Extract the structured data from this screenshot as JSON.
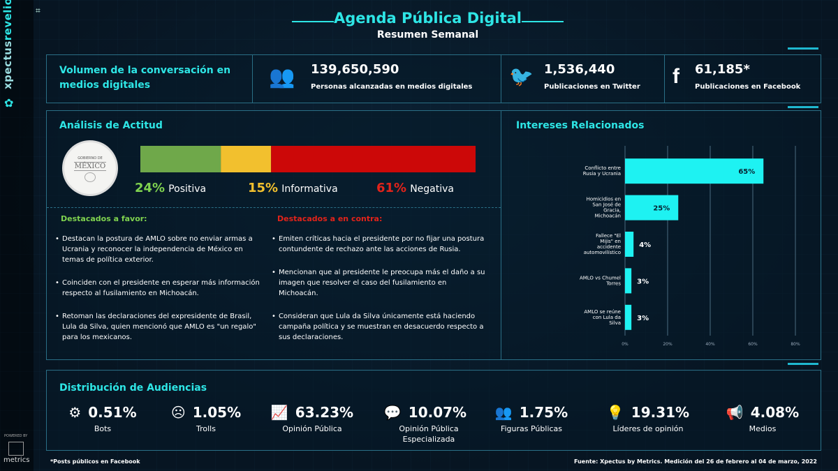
{
  "header": {
    "title": "Agenda Pública Digital",
    "subtitle": "Resumen Semanal"
  },
  "brand": {
    "name_part1": "xpectus",
    "name_part2": "revelio",
    "powered_by": "POWERED BY",
    "metrics": "metrics"
  },
  "volume": {
    "title": "Volumen de la conversación en medios digitales",
    "stats": [
      {
        "icon": "people-icon",
        "value": "139,650,590",
        "label": "Personas alcanzadas en medios digitales"
      },
      {
        "icon": "twitter-icon",
        "value": "1,536,440",
        "label": "Publicaciones en Twitter"
      },
      {
        "icon": "facebook-icon",
        "value": "61,185*",
        "label": "Publicaciones en Facebook"
      }
    ]
  },
  "attitude": {
    "title": "Análisis de Actitud",
    "seal": {
      "top": "GOBIERNO DE",
      "main": "MÉXICO"
    },
    "segments": [
      {
        "pct": "24%",
        "value": 24,
        "label": "Positiva",
        "color": "#6fa84a",
        "text_color": "#7fd24f"
      },
      {
        "pct": "15%",
        "value": 15,
        "label": "Informativa",
        "color": "#f2c02e",
        "text_color": "#f2c02e"
      },
      {
        "pct": "61%",
        "value": 61,
        "label": "Negativa",
        "color": "#cc0808",
        "text_color": "#e2231a"
      }
    ],
    "favor": {
      "title": "Destacados a favor:",
      "items": [
        "Destacan la postura de AMLO sobre no enviar armas a Ucrania y reconocer la independencia de México en temas de política exterior.",
        "Coinciden con el presidente en esperar más información respecto al fusilamiento en Michoacán.",
        "Retoman las declaraciones del expresidente de Brasil, Lula da Silva, quien mencionó que AMLO es \"un regalo\" para los mexicanos."
      ]
    },
    "contra": {
      "title": "Destacados a en contra:",
      "items": [
        "Emiten críticas hacia el presidente por no fijar una postura contundente de rechazo ante las acciones de Rusia.",
        "Mencionan que al presidente le preocupa más el daño a su imagen que resolver el caso del fusilamiento en Michoacán.",
        "Consideran que Lula da Silva únicamente está haciendo campaña política y se muestran en desacuerdo respecto a sus declaraciones."
      ]
    }
  },
  "chart_data": {
    "type": "bar",
    "orientation": "horizontal",
    "title": "Intereses Relacionados",
    "categories": [
      "Conflicto entre Rusia y Ucrania",
      "Homicidios en San José de Gracia, Michoacán",
      "Fallece \"El Mijis\" en accidente automovilístico",
      "AMLO vs Chumel Torres",
      "AMLO se reúne con Lula da Silva"
    ],
    "values": [
      65,
      25,
      4,
      3,
      3
    ],
    "value_labels": [
      "65%",
      "25%",
      "4%",
      "3%",
      "3%"
    ],
    "xlim": [
      0,
      80
    ],
    "xticks": [
      "0%",
      "20%",
      "40%",
      "60%",
      "80%"
    ],
    "grid": true,
    "bar_color": "#1ef2f2"
  },
  "audiences": {
    "title": "Distribución de Audiencias",
    "items": [
      {
        "icon": "robot-icon",
        "glyph": "🤖",
        "pct": "0.51%",
        "label": "Bots"
      },
      {
        "icon": "troll-face-icon",
        "glyph": "☹",
        "pct": "1.05%",
        "label": "Trolls"
      },
      {
        "icon": "trend-chart-icon",
        "glyph": "📈",
        "pct": "63.23%",
        "label": "Opinión Pública"
      },
      {
        "icon": "chat-bubble-icon",
        "glyph": "💬",
        "pct": "10.07%",
        "label": "Opinión Pública Especializada"
      },
      {
        "icon": "group-icon",
        "glyph": "👥",
        "pct": "1.75%",
        "label": "Figuras Públicas"
      },
      {
        "icon": "lightbulb-icon",
        "glyph": "💡",
        "pct": "19.31%",
        "label": "Líderes de opinión"
      },
      {
        "icon": "megaphone-icon",
        "glyph": "📢",
        "pct": "4.08%",
        "label": "Medios"
      }
    ]
  },
  "footer": {
    "note": "*Posts públicos en Facebook",
    "source": "Fuente: Xpectus by Metrics. Medición del 26 de febrero al 04 de marzo, 2022"
  }
}
